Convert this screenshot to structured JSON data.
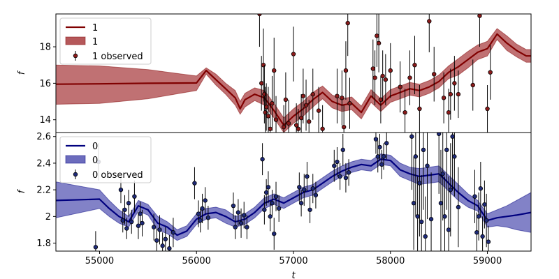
{
  "chart_data": [
    {
      "type": "line",
      "panel": "top",
      "ylabel": "f",
      "xlim": [
        54550,
        59450
      ],
      "ylim": [
        13.3,
        19.8
      ],
      "yticks": [
        14,
        16,
        18
      ],
      "grid": false,
      "legend_position": "upper-left",
      "legend": [
        "1",
        "1",
        "1 observed"
      ],
      "color": "#800000",
      "band_color": "#b5585a",
      "marker_color": "#8b1a1a",
      "model": {
        "x": [
          54550,
          55000,
          55500,
          56000,
          56100,
          56200,
          56300,
          56400,
          56450,
          56500,
          56600,
          56700,
          56800,
          56900,
          57000,
          57100,
          57200,
          57300,
          57400,
          57500,
          57600,
          57700,
          57800,
          57900,
          58000,
          58100,
          58200,
          58300,
          58400,
          58500,
          58600,
          58700,
          58800,
          58900,
          59000,
          59100,
          59200,
          59300,
          59400,
          59450
        ],
        "y": [
          15.95,
          15.97,
          16.0,
          16.02,
          16.7,
          16.2,
          15.7,
          15.2,
          14.6,
          15.1,
          15.4,
          15.2,
          14.5,
          13.7,
          14.2,
          14.6,
          15.1,
          15.5,
          15.0,
          14.8,
          14.9,
          14.4,
          15.3,
          14.8,
          15.3,
          15.5,
          15.7,
          15.6,
          15.8,
          16.1,
          16.6,
          16.9,
          17.3,
          17.7,
          17.9,
          18.7,
          18.2,
          17.8,
          17.5,
          17.5
        ],
        "upper": [
          17.0,
          16.95,
          16.75,
          16.4,
          16.85,
          16.5,
          16.0,
          15.6,
          15.0,
          15.45,
          15.75,
          15.6,
          14.9,
          14.1,
          14.6,
          15.0,
          15.5,
          15.85,
          15.35,
          15.15,
          15.25,
          14.75,
          15.65,
          15.15,
          15.65,
          15.85,
          16.05,
          15.95,
          16.15,
          16.45,
          16.95,
          17.35,
          17.75,
          18.1,
          18.3,
          19.0,
          18.6,
          18.15,
          17.85,
          17.85
        ],
        "lower": [
          14.85,
          14.9,
          15.15,
          15.6,
          16.5,
          15.9,
          15.4,
          14.8,
          14.3,
          14.7,
          15.05,
          14.8,
          14.1,
          13.3,
          13.8,
          14.2,
          14.7,
          15.15,
          14.65,
          14.45,
          14.55,
          14.05,
          14.95,
          14.45,
          14.95,
          15.15,
          15.35,
          15.25,
          15.45,
          15.75,
          16.25,
          16.45,
          16.85,
          17.3,
          17.5,
          18.4,
          17.8,
          17.45,
          17.15,
          17.15
        ]
      },
      "observed": {
        "x": [
          56650,
          56670,
          56690,
          56700,
          56710,
          56720,
          56740,
          56760,
          56780,
          56800,
          56820,
          56900,
          56920,
          56950,
          57000,
          57030,
          57050,
          57080,
          57100,
          57130,
          57160,
          57200,
          57260,
          57300,
          57450,
          57500,
          57520,
          57540,
          57560,
          57580,
          57820,
          57840,
          57860,
          57880,
          57900,
          57920,
          57950,
          58000,
          58100,
          58150,
          58200,
          58250,
          58300,
          58400,
          58450,
          58550,
          58600,
          58620,
          58660,
          58700,
          58850,
          58920,
          59000,
          59030
        ],
        "y": [
          19.8,
          16.0,
          17.0,
          15.4,
          14.4,
          14.7,
          14.2,
          13.5,
          14.9,
          16.7,
          14.0,
          13.6,
          15.1,
          13.8,
          17.6,
          13.7,
          13.5,
          14.1,
          15.3,
          14.8,
          13.9,
          15.4,
          14.5,
          13.5,
          15.3,
          15.2,
          13.6,
          16.7,
          19.3,
          14.9,
          16.8,
          16.3,
          18.6,
          18.2,
          15.1,
          16.4,
          16.2,
          16.7,
          15.8,
          14.4,
          16.3,
          17.0,
          14.6,
          19.4,
          16.5,
          15.2,
          14.4,
          15.4,
          16.0,
          15.4,
          15.9,
          19.7,
          14.6,
          16.6
        ],
        "err": [
          1.8,
          1.5,
          2.0,
          1.6,
          1.4,
          1.3,
          1.6,
          1.4,
          1.5,
          1.8,
          1.3,
          1.2,
          1.5,
          1.3,
          1.5,
          1.2,
          1.1,
          1.3,
          1.5,
          1.4,
          1.2,
          1.4,
          1.3,
          1.3,
          1.5,
          1.5,
          1.2,
          1.6,
          1.8,
          1.4,
          1.6,
          1.5,
          1.7,
          1.6,
          1.3,
          1.4,
          1.4,
          1.5,
          1.4,
          1.3,
          1.5,
          1.6,
          1.3,
          1.7,
          1.5,
          1.4,
          1.3,
          1.4,
          1.5,
          1.3,
          1.4,
          1.7,
          1.3,
          1.5
        ]
      }
    },
    {
      "type": "line",
      "panel": "bottom",
      "xlabel": "t",
      "ylabel": "f",
      "xlim": [
        54550,
        59450
      ],
      "ylim": [
        1.74,
        2.63
      ],
      "xticks": [
        55000,
        56000,
        57000,
        58000,
        59000
      ],
      "yticks": [
        1.8,
        2.0,
        2.2,
        2.4,
        2.6
      ],
      "grid": false,
      "legend_position": "upper-left",
      "legend": [
        "0",
        "0",
        "0 observed"
      ],
      "color": "#00007f",
      "band_color": "#6c6cbd",
      "marker_color": "#1e2a78",
      "model": {
        "x": [
          54550,
          55000,
          55100,
          55200,
          55300,
          55400,
          55500,
          55600,
          55700,
          55800,
          55900,
          56000,
          56100,
          56200,
          56300,
          56400,
          56500,
          56600,
          56700,
          56800,
          56900,
          57000,
          57100,
          57200,
          57300,
          57400,
          57500,
          57600,
          57700,
          57800,
          57900,
          58000,
          58100,
          58200,
          58300,
          58400,
          58500,
          58600,
          58700,
          58800,
          58900,
          59000,
          59100,
          59200,
          59300,
          59450
        ],
        "y": [
          2.12,
          2.13,
          2.06,
          2.0,
          1.96,
          2.08,
          2.05,
          1.95,
          1.92,
          1.86,
          1.89,
          1.98,
          2.02,
          2.03,
          2.0,
          1.96,
          1.98,
          2.03,
          2.1,
          2.13,
          2.1,
          2.14,
          2.18,
          2.2,
          2.25,
          2.3,
          2.34,
          2.37,
          2.39,
          2.38,
          2.43,
          2.42,
          2.35,
          2.32,
          2.3,
          2.31,
          2.32,
          2.25,
          2.18,
          2.12,
          2.08,
          1.97,
          1.99,
          2.0,
          2.01,
          2.03
        ],
        "upper": [
          2.26,
          2.2,
          2.12,
          2.05,
          2.0,
          2.12,
          2.09,
          2.0,
          1.96,
          1.9,
          1.93,
          2.02,
          2.06,
          2.07,
          2.05,
          2.0,
          2.02,
          2.07,
          2.14,
          2.17,
          2.14,
          2.18,
          2.22,
          2.24,
          2.29,
          2.34,
          2.38,
          2.41,
          2.43,
          2.42,
          2.47,
          2.46,
          2.4,
          2.37,
          2.36,
          2.37,
          2.38,
          2.31,
          2.24,
          2.17,
          2.12,
          2.02,
          2.05,
          2.08,
          2.12,
          2.18
        ],
        "lower": [
          1.99,
          2.06,
          2.0,
          1.95,
          1.92,
          2.04,
          2.01,
          1.9,
          1.87,
          1.82,
          1.85,
          1.94,
          1.98,
          1.99,
          1.95,
          1.92,
          1.94,
          1.99,
          2.06,
          2.09,
          2.06,
          2.1,
          2.14,
          2.16,
          2.21,
          2.26,
          2.3,
          2.33,
          2.35,
          2.34,
          2.39,
          2.38,
          2.3,
          2.27,
          2.24,
          2.25,
          2.26,
          2.19,
          2.12,
          2.07,
          2.04,
          1.92,
          1.93,
          1.92,
          1.9,
          1.88
        ]
      },
      "observed": {
        "x": [
          54960,
          54990,
          55220,
          55240,
          55260,
          55280,
          55300,
          55330,
          55360,
          55400,
          55420,
          55440,
          55560,
          55590,
          55620,
          55650,
          55680,
          55720,
          55760,
          55980,
          56020,
          56040,
          56060,
          56090,
          56120,
          56380,
          56400,
          56430,
          56460,
          56490,
          56520,
          56680,
          56700,
          56720,
          56740,
          56760,
          56780,
          56800,
          56820,
          56850,
          57060,
          57080,
          57110,
          57140,
          57170,
          57200,
          57230,
          57420,
          57450,
          57480,
          57510,
          57540,
          57570,
          57850,
          57870,
          57890,
          57910,
          57930,
          57960,
          58220,
          58240,
          58260,
          58280,
          58300,
          58320,
          58340,
          58360,
          58380,
          58420,
          58500,
          58520,
          58540,
          58560,
          58580,
          58600,
          58620,
          58640,
          58660,
          58700,
          58870,
          58890,
          58910,
          58930,
          58950,
          58970,
          58990,
          59010
        ],
        "y": [
          1.77,
          2.41,
          2.2,
          1.97,
          2.05,
          1.91,
          2.1,
          1.96,
          2.15,
          1.93,
          2.02,
          1.95,
          1.92,
          1.82,
          1.9,
          1.78,
          1.83,
          1.76,
          1.88,
          2.25,
          2.02,
          1.97,
          2.06,
          2.12,
          1.99,
          2.08,
          1.92,
          2.03,
          1.95,
          2.01,
          1.92,
          2.43,
          2.05,
          2.18,
          2.22,
          2.0,
          2.1,
          1.87,
          2.15,
          2.06,
          2.22,
          2.1,
          2.2,
          2.3,
          2.05,
          2.21,
          2.16,
          2.38,
          2.41,
          2.3,
          2.5,
          2.29,
          2.33,
          2.58,
          2.45,
          2.52,
          2.39,
          2.45,
          2.55,
          2.6,
          2.1,
          2.45,
          2.0,
          2.25,
          1.96,
          2.5,
          1.85,
          2.38,
          1.98,
          2.62,
          2.1,
          2.32,
          2.0,
          2.5,
          1.9,
          2.2,
          2.6,
          2.45,
          2.07,
          2.15,
          1.88,
          2.0,
          2.21,
          1.85,
          2.09,
          1.97,
          1.81
        ],
        "err": [
          0.12,
          0.14,
          0.1,
          0.09,
          0.11,
          0.08,
          0.1,
          0.09,
          0.12,
          0.1,
          0.09,
          0.1,
          0.1,
          0.09,
          0.11,
          0.1,
          0.09,
          0.1,
          0.11,
          0.12,
          0.1,
          0.09,
          0.11,
          0.1,
          0.09,
          0.1,
          0.09,
          0.1,
          0.11,
          0.1,
          0.09,
          0.12,
          0.11,
          0.1,
          0.12,
          0.11,
          0.1,
          0.12,
          0.11,
          0.1,
          0.11,
          0.1,
          0.12,
          0.11,
          0.1,
          0.11,
          0.1,
          0.12,
          0.11,
          0.1,
          0.12,
          0.11,
          0.1,
          0.11,
          0.12,
          0.1,
          0.11,
          0.1,
          0.12,
          0.4,
          0.35,
          0.45,
          0.3,
          0.4,
          0.35,
          0.45,
          0.3,
          0.4,
          0.35,
          0.45,
          0.4,
          0.35,
          0.3,
          0.45,
          0.4,
          0.35,
          0.4,
          0.3,
          0.3,
          0.2,
          0.15,
          0.18,
          0.2,
          0.15,
          0.18,
          0.2,
          0.12
        ]
      }
    }
  ]
}
